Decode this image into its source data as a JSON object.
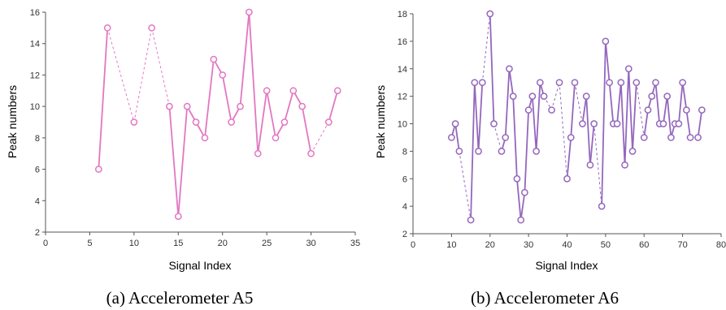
{
  "chart_data": [
    {
      "type": "line",
      "caption": "(a) Accelerometer A5",
      "xlabel": "Signal Index",
      "ylabel": "Peak numbers",
      "xlim": [
        0,
        35
      ],
      "ylim": [
        2,
        16
      ],
      "xticks": [
        0,
        5,
        10,
        15,
        20,
        25,
        30,
        35
      ],
      "yticks": [
        2,
        4,
        6,
        8,
        10,
        12,
        14,
        16
      ],
      "color": "#e377c2",
      "points": [
        [
          6,
          6
        ],
        [
          7,
          15
        ],
        [
          10,
          9
        ],
        [
          12,
          15
        ],
        [
          14,
          10
        ],
        [
          15,
          3
        ],
        [
          16,
          10
        ],
        [
          17,
          9
        ],
        [
          18,
          8
        ],
        [
          19,
          13
        ],
        [
          20,
          12
        ],
        [
          21,
          9
        ],
        [
          22,
          10
        ],
        [
          23,
          16
        ],
        [
          24,
          7
        ],
        [
          25,
          11
        ],
        [
          26,
          8
        ],
        [
          27,
          9
        ],
        [
          28,
          11
        ],
        [
          29,
          10
        ],
        [
          30,
          7
        ],
        [
          32,
          9
        ],
        [
          33,
          11
        ]
      ]
    },
    {
      "type": "line",
      "caption": "(b) Accelerometer A6",
      "xlabel": "Signal Index",
      "ylabel": "Peak numbers",
      "xlim": [
        0,
        80
      ],
      "ylim": [
        2,
        18
      ],
      "xticks": [
        0,
        10,
        20,
        30,
        40,
        50,
        60,
        70,
        80
      ],
      "yticks": [
        2,
        4,
        6,
        8,
        10,
        12,
        14,
        16,
        18
      ],
      "color": "#9467bd",
      "points": [
        [
          10,
          9
        ],
        [
          11,
          10
        ],
        [
          12,
          8
        ],
        [
          15,
          3
        ],
        [
          16,
          13
        ],
        [
          17,
          8
        ],
        [
          18,
          13
        ],
        [
          20,
          18
        ],
        [
          21,
          10
        ],
        [
          23,
          8
        ],
        [
          24,
          9
        ],
        [
          25,
          14
        ],
        [
          26,
          12
        ],
        [
          27,
          6
        ],
        [
          28,
          3
        ],
        [
          29,
          5
        ],
        [
          30,
          11
        ],
        [
          31,
          12
        ],
        [
          32,
          8
        ],
        [
          33,
          13
        ],
        [
          34,
          12
        ],
        [
          36,
          11
        ],
        [
          38,
          13
        ],
        [
          40,
          6
        ],
        [
          41,
          9
        ],
        [
          42,
          13
        ],
        [
          44,
          10
        ],
        [
          45,
          12
        ],
        [
          46,
          7
        ],
        [
          47,
          10
        ],
        [
          49,
          4
        ],
        [
          50,
          16
        ],
        [
          51,
          13
        ],
        [
          52,
          10
        ],
        [
          53,
          10
        ],
        [
          54,
          13
        ],
        [
          55,
          7
        ],
        [
          56,
          14
        ],
        [
          57,
          8
        ],
        [
          58,
          13
        ],
        [
          60,
          9
        ],
        [
          61,
          11
        ],
        [
          62,
          12
        ],
        [
          63,
          13
        ],
        [
          64,
          10
        ],
        [
          65,
          10
        ],
        [
          66,
          12
        ],
        [
          67,
          9
        ],
        [
          68,
          10
        ],
        [
          69,
          10
        ],
        [
          70,
          13
        ],
        [
          71,
          11
        ],
        [
          72,
          9
        ],
        [
          74,
          9
        ],
        [
          75,
          11
        ]
      ]
    }
  ]
}
